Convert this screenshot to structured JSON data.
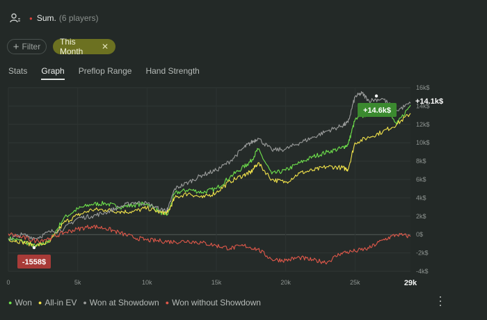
{
  "header": {
    "summary_label": "Sum.",
    "players_text": "(6 players)",
    "marker_color": "#d9413a"
  },
  "filters": {
    "filter_label": "Filter",
    "active_label": "This Month"
  },
  "tabs": [
    {
      "label": "Stats",
      "active": false
    },
    {
      "label": "Graph",
      "active": true
    },
    {
      "label": "Preflop Range",
      "active": false
    },
    {
      "label": "Hand Strength",
      "active": false
    }
  ],
  "chart_data": {
    "type": "line",
    "x_ticks": [
      "0",
      "5k",
      "10k",
      "15k",
      "20k",
      "25k"
    ],
    "x_max_label": "29k",
    "xlim": [
      0,
      29000
    ],
    "y_ticks": [
      "16k$",
      "14k$",
      "12k$",
      "10k$",
      "8k$",
      "6k$",
      "4k$",
      "2k$",
      "0$",
      "-2k$",
      "-4k$"
    ],
    "ylim": [
      -4000,
      16000
    ],
    "grid": true,
    "annotations": {
      "max_label": "+14.6k$",
      "min_label": "-1558$",
      "end_label": "+14.1k$"
    },
    "series": [
      {
        "name": "Won",
        "color": "#6fe24c",
        "x": [
          0,
          1000,
          2000,
          3000,
          4000,
          5000,
          6000,
          7000,
          8000,
          9000,
          10000,
          11000,
          11500,
          12000,
          13000,
          14000,
          15000,
          16000,
          17000,
          17500,
          18000,
          19000,
          20000,
          21000,
          22000,
          23000,
          24000,
          24500,
          25000,
          26000,
          27000,
          28000,
          29000
        ],
        "y": [
          -400,
          -700,
          -1300,
          -700,
          1800,
          2800,
          3300,
          3400,
          3000,
          3200,
          3400,
          2400,
          2200,
          4500,
          4900,
          4600,
          5000,
          6300,
          7400,
          8000,
          9300,
          6600,
          7000,
          7800,
          8500,
          9000,
          9400,
          9800,
          12500,
          13200,
          14200,
          12000,
          14100
        ]
      },
      {
        "name": "All-in EV",
        "color": "#f2e34a",
        "x": [
          0,
          1000,
          2000,
          3000,
          4000,
          5000,
          6000,
          7000,
          8000,
          9000,
          10000,
          11000,
          11500,
          12000,
          13000,
          14000,
          15000,
          16000,
          17000,
          17500,
          18000,
          19000,
          20000,
          21000,
          22000,
          23000,
          24000,
          24500,
          25000,
          26000,
          27000,
          28000,
          29000
        ],
        "y": [
          -500,
          -800,
          -1200,
          -800,
          1300,
          2100,
          2700,
          2700,
          2500,
          2500,
          2900,
          2400,
          2400,
          4000,
          4500,
          4000,
          4600,
          5800,
          6500,
          6800,
          7800,
          6000,
          5700,
          6700,
          7000,
          7400,
          7300,
          7100,
          10000,
          10600,
          11200,
          12000,
          13200
        ]
      },
      {
        "name": "Won at Showdown",
        "color": "#9a9c9b",
        "x": [
          0,
          1000,
          2000,
          3000,
          4000,
          5000,
          6000,
          7000,
          8000,
          9000,
          10000,
          11000,
          11500,
          12000,
          13000,
          14000,
          15000,
          16000,
          17000,
          17500,
          18000,
          19000,
          20000,
          21000,
          22000,
          23000,
          24000,
          24500,
          25000,
          25500,
          26000,
          27000,
          28000,
          29000
        ],
        "y": [
          -500,
          0,
          -400,
          300,
          600,
          1800,
          2000,
          2400,
          3000,
          3500,
          3400,
          2700,
          2700,
          5000,
          5700,
          6500,
          7000,
          8000,
          9500,
          10000,
          10500,
          9200,
          9300,
          10000,
          10600,
          11300,
          11800,
          12200,
          15000,
          15400,
          14600,
          14800,
          13500,
          14300
        ]
      },
      {
        "name": "Won without Showdown",
        "color": "#e0584a",
        "x": [
          0,
          1000,
          2000,
          3000,
          4000,
          5000,
          6000,
          7000,
          8000,
          9000,
          10000,
          11000,
          12000,
          13000,
          14000,
          15000,
          16000,
          17000,
          18000,
          19000,
          20000,
          21000,
          22000,
          23000,
          24000,
          25000,
          26000,
          27000,
          28000,
          29000
        ],
        "y": [
          100,
          -300,
          -700,
          -400,
          200,
          600,
          900,
          700,
          200,
          -300,
          -600,
          -700,
          -800,
          -700,
          -900,
          -1200,
          -1500,
          -1200,
          -1600,
          -2700,
          -2800,
          -2500,
          -2800,
          -3000,
          -2000,
          -1800,
          -1500,
          -600,
          0,
          -200
        ]
      }
    ]
  }
}
